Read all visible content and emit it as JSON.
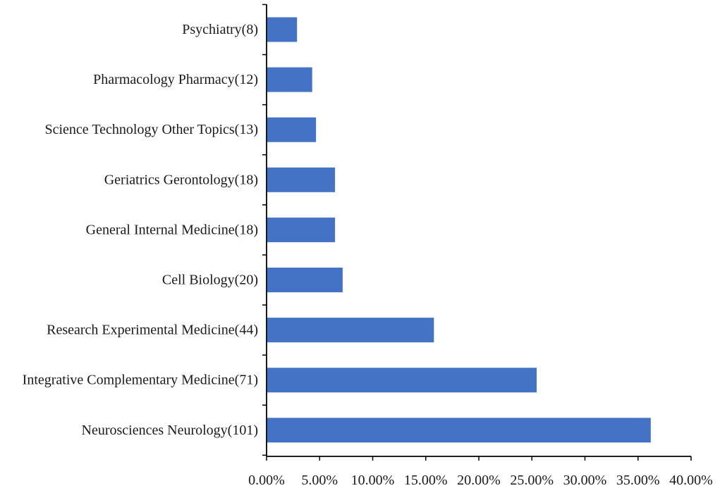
{
  "chart_data": {
    "type": "bar",
    "orientation": "horizontal",
    "categories": [
      "Psychiatry(8)",
      "Pharmacology Pharmacy(12)",
      "Science Technology Other Topics(13)",
      "Geriatrics Gerontology(18)",
      "General Internal Medicine(18)",
      "Cell Biology(20)",
      "Research Experimental Medicine(44)",
      "Integrative Complementary Medicine(71)",
      "Neurosciences Neurology(101)"
    ],
    "values": [
      2.87,
      4.3,
      4.66,
      6.45,
      6.45,
      7.17,
      15.77,
      25.45,
      36.2
    ],
    "xlim": [
      0,
      40
    ],
    "xticks": [
      0,
      5,
      10,
      15,
      20,
      25,
      30,
      35,
      40
    ],
    "xtick_labels": [
      "0.00%",
      "5.00%",
      "10.00%",
      "15.00%",
      "20.00%",
      "25.00%",
      "30.00%",
      "35.00%",
      "40.00%"
    ],
    "title": "",
    "xlabel": "",
    "ylabel": "",
    "grid": false,
    "legend": "none",
    "bar_color": "#4472c4",
    "axis_color": "#000000"
  }
}
